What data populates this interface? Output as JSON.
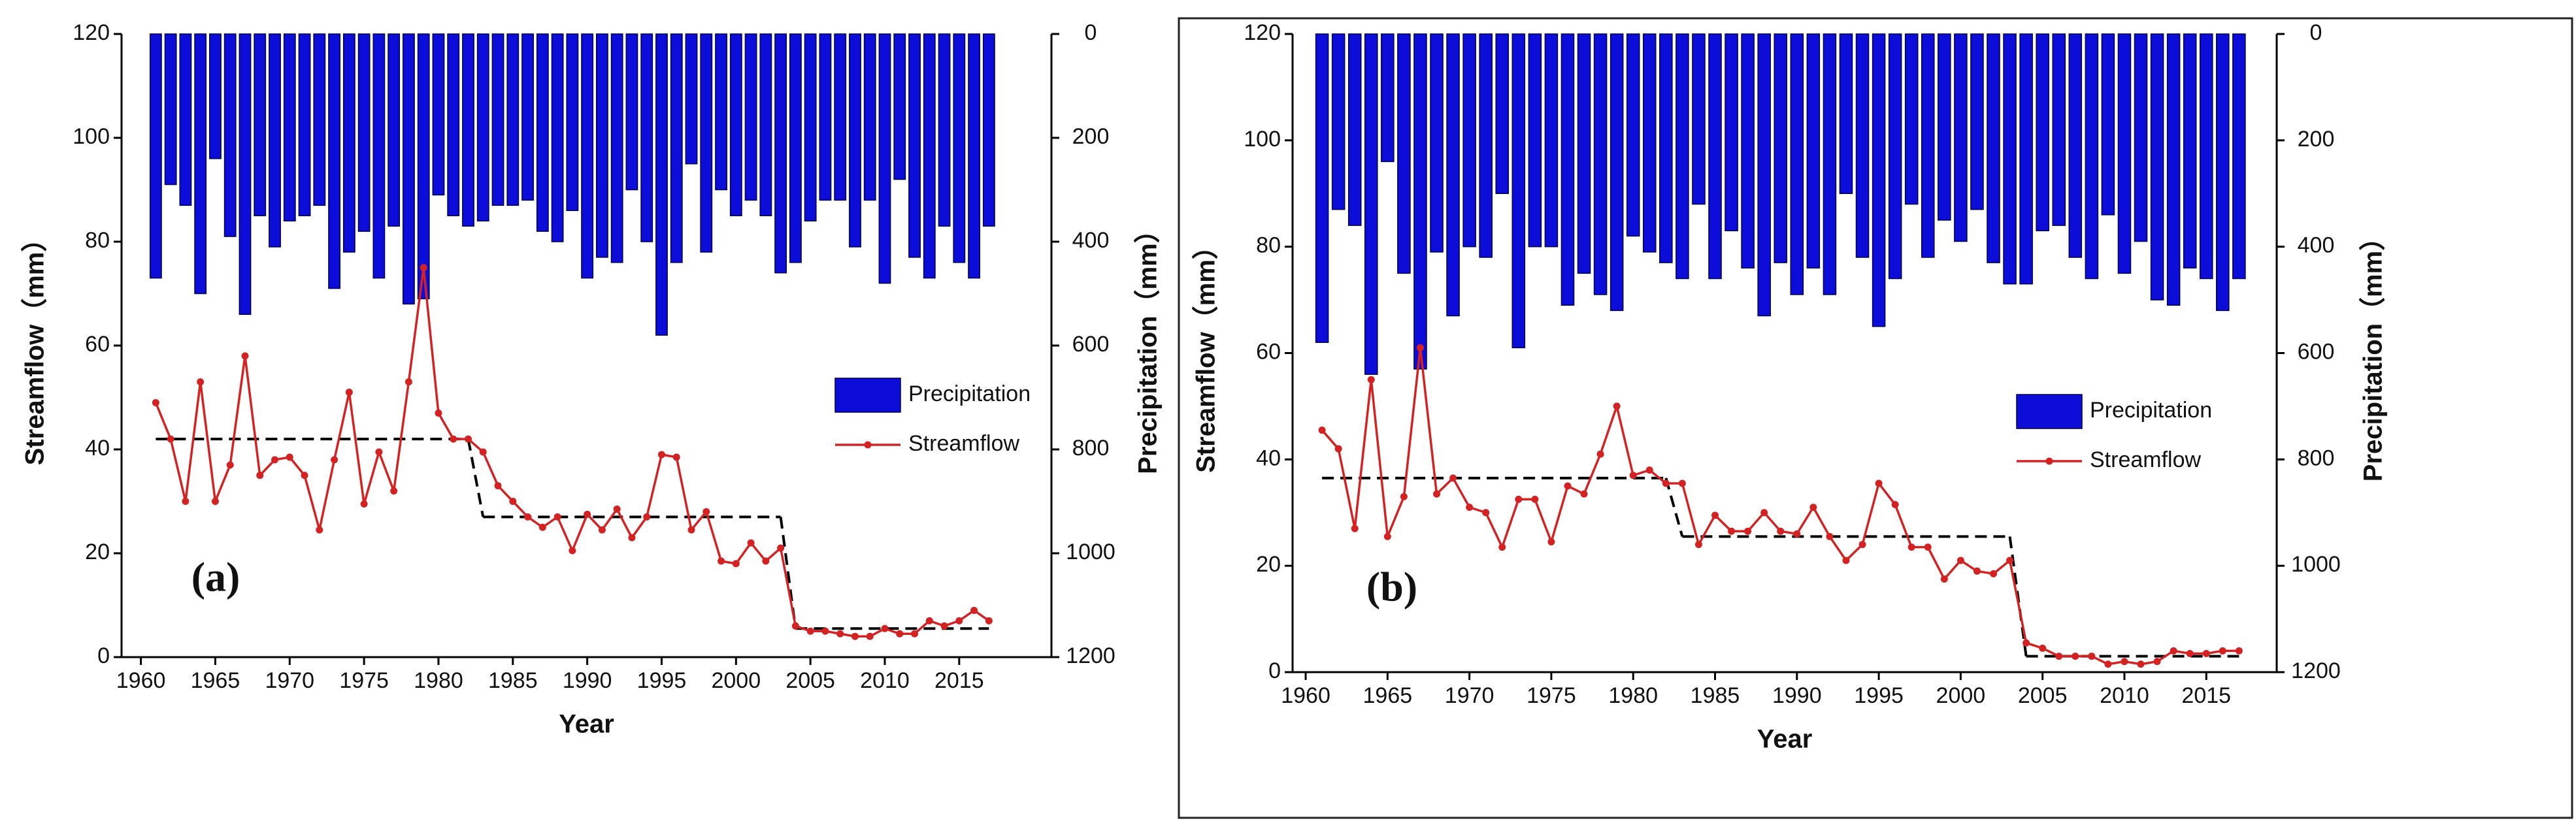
{
  "chart_data": [
    {
      "type": "bar-line",
      "label": "(a)",
      "xlabel": "Year",
      "ylabel": "Streamflow（mm）",
      "y2label": "Precipitation（mm）",
      "x": [
        1961,
        1962,
        1963,
        1964,
        1965,
        1966,
        1967,
        1968,
        1969,
        1970,
        1971,
        1972,
        1973,
        1974,
        1975,
        1976,
        1977,
        1978,
        1979,
        1980,
        1981,
        1982,
        1983,
        1984,
        1985,
        1986,
        1987,
        1988,
        1989,
        1990,
        1991,
        1992,
        1993,
        1994,
        1995,
        1996,
        1997,
        1998,
        1999,
        2000,
        2001,
        2002,
        2003,
        2004,
        2005,
        2006,
        2007,
        2008,
        2009,
        2010,
        2011,
        2012,
        2013,
        2014,
        2015,
        2016,
        2017
      ],
      "series": [
        {
          "name": "Precipitation",
          "kind": "bar",
          "axis": "y2",
          "color": "#0d0dd9",
          "values": [
            470,
            290,
            330,
            500,
            240,
            390,
            540,
            350,
            410,
            360,
            350,
            330,
            490,
            420,
            380,
            470,
            370,
            520,
            510,
            310,
            350,
            370,
            360,
            330,
            330,
            320,
            380,
            400,
            340,
            470,
            430,
            440,
            300,
            400,
            580,
            440,
            250,
            420,
            300,
            350,
            320,
            350,
            460,
            440,
            360,
            320,
            320,
            410,
            320,
            480,
            280,
            430,
            470,
            370,
            440,
            470,
            370
          ]
        },
        {
          "name": "Streamflow",
          "kind": "line",
          "axis": "y",
          "color": "#d42222",
          "values": [
            49,
            42,
            30,
            53,
            30,
            37,
            58,
            35,
            38,
            38.5,
            35,
            24.5,
            38,
            51,
            29.5,
            39.5,
            32,
            53,
            75,
            47,
            42,
            42,
            39.5,
            33,
            30,
            27,
            25,
            27,
            20.5,
            27.5,
            24.5,
            28.5,
            23,
            27,
            39,
            38.5,
            24.5,
            28,
            18.5,
            18,
            22,
            18.5,
            21,
            6,
            5,
            5,
            4.5,
            4,
            4,
            5.5,
            4.5,
            4.5,
            7,
            6,
            7,
            9,
            7
          ]
        }
      ],
      "steps": {
        "color": "#000000",
        "x": [
          1961,
          1982,
          1983,
          2003,
          2004,
          2017
        ],
        "values": [
          42,
          42,
          27,
          27,
          5.5,
          5.5
        ]
      },
      "xlim": [
        1958.7,
        2021.2
      ],
      "xticks": [
        1960,
        1965,
        1970,
        1975,
        1980,
        1985,
        1990,
        1995,
        2000,
        2005,
        2010,
        2015
      ],
      "ylim": [
        0,
        120
      ],
      "yticks": [
        0,
        20,
        40,
        60,
        80,
        100,
        120
      ],
      "y2lim": [
        0,
        1200
      ],
      "y2ticks": [
        0,
        200,
        400,
        600,
        800,
        1000,
        1200
      ],
      "y2_inverted": true,
      "legend": "right"
    },
    {
      "type": "bar-line",
      "label": "(b)",
      "xlabel": "Year",
      "ylabel": "Streamflow（mm）",
      "y2label": "Precipitation（mm）",
      "x": [
        1961,
        1962,
        1963,
        1964,
        1965,
        1966,
        1967,
        1968,
        1969,
        1970,
        1971,
        1972,
        1973,
        1974,
        1975,
        1976,
        1977,
        1978,
        1979,
        1980,
        1981,
        1982,
        1983,
        1984,
        1985,
        1986,
        1987,
        1988,
        1989,
        1990,
        1991,
        1992,
        1993,
        1994,
        1995,
        1996,
        1997,
        1998,
        1999,
        2000,
        2001,
        2002,
        2003,
        2004,
        2005,
        2006,
        2007,
        2008,
        2009,
        2010,
        2011,
        2012,
        2013,
        2014,
        2015,
        2016,
        2017
      ],
      "series": [
        {
          "name": "Precipitation",
          "kind": "bar",
          "axis": "y2",
          "color": "#0d0dd9",
          "values": [
            580,
            330,
            360,
            640,
            240,
            450,
            630,
            410,
            530,
            400,
            420,
            300,
            590,
            400,
            400,
            510,
            450,
            490,
            520,
            380,
            410,
            430,
            460,
            320,
            460,
            370,
            440,
            530,
            430,
            490,
            440,
            490,
            300,
            420,
            550,
            460,
            320,
            420,
            350,
            390,
            330,
            430,
            470,
            470,
            370,
            360,
            420,
            460,
            340,
            450,
            390,
            500,
            510,
            440,
            460,
            520,
            460
          ]
        },
        {
          "name": "Streamflow",
          "kind": "line",
          "axis": "y",
          "color": "#d42222",
          "values": [
            45.5,
            42,
            27,
            55,
            25.5,
            33,
            61,
            33.5,
            36.5,
            31,
            30,
            23.5,
            32.5,
            32.5,
            24.5,
            35,
            33.5,
            41,
            50,
            37,
            38,
            35.5,
            35.5,
            24,
            29.5,
            26.5,
            26.5,
            30,
            26.5,
            26,
            31,
            25.5,
            21,
            24,
            35.5,
            31.5,
            23.5,
            23.5,
            17.5,
            21,
            19,
            18.5,
            21,
            5.5,
            4.5,
            3,
            3,
            3,
            1.5,
            2,
            1.5,
            2,
            4,
            3.5,
            3.5,
            4,
            4
          ]
        }
      ],
      "steps": {
        "color": "#000000",
        "x": [
          1961,
          1982,
          1983,
          2003,
          2004,
          2017
        ],
        "values": [
          36.5,
          36.5,
          25.5,
          25.5,
          3,
          3
        ]
      },
      "xlim": [
        1959.2,
        2019.3
      ],
      "xticks": [
        1960,
        1965,
        1970,
        1975,
        1980,
        1985,
        1990,
        1995,
        2000,
        2005,
        2010,
        2015
      ],
      "ylim": [
        0,
        120
      ],
      "yticks": [
        0,
        20,
        40,
        60,
        80,
        100,
        120
      ],
      "y2lim": [
        0,
        1200
      ],
      "y2ticks": [
        0,
        200,
        400,
        600,
        800,
        1000,
        1200
      ],
      "y2_inverted": true,
      "legend": "right"
    }
  ]
}
